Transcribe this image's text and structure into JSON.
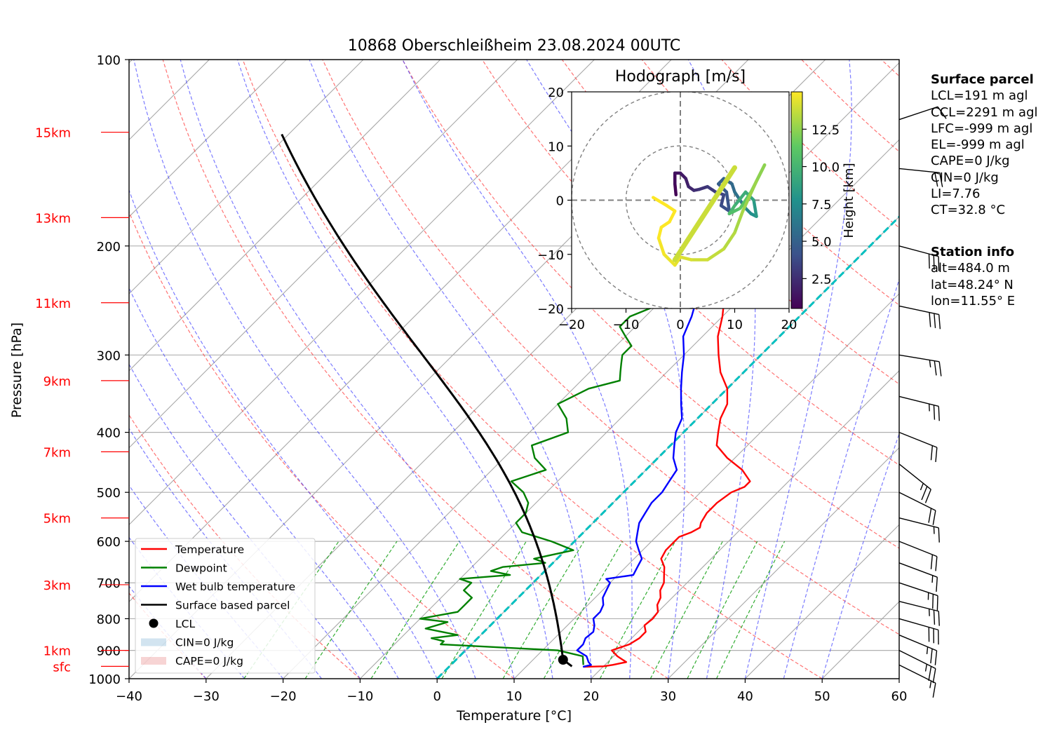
{
  "chart_data": {
    "type": "skew-t",
    "title": "10868 Oberschleißheim 23.08.2024 00UTC",
    "xlabel": "Temperature [°C]",
    "ylabel": "Pressure [hPa]",
    "xlim": [
      -40,
      60
    ],
    "ylim": [
      1000,
      100
    ],
    "y_scale": "log",
    "skew_deg": 45,
    "grid": true,
    "x_ticks": [
      -40,
      -30,
      -20,
      -10,
      0,
      10,
      20,
      30,
      40,
      50,
      60
    ],
    "x_tick_labels": [
      "−40",
      "−30",
      "−20",
      "−10",
      "0",
      "10",
      "20",
      "30",
      "40",
      "50",
      "60"
    ],
    "y_ticks": [
      1000,
      900,
      800,
      700,
      600,
      500,
      400,
      300,
      200,
      100
    ],
    "y_tick_labels": [
      "1000",
      "900",
      "800",
      "700",
      "600",
      "500",
      "400",
      "300",
      "200",
      "100"
    ],
    "height_labels": [
      {
        "label": "sfc",
        "p": 955
      },
      {
        "label": "1km",
        "p": 900
      },
      {
        "label": "3km",
        "p": 705
      },
      {
        "label": "5km",
        "p": 550
      },
      {
        "label": "7km",
        "p": 430
      },
      {
        "label": "9km",
        "p": 330
      },
      {
        "label": "11km",
        "p": 247
      },
      {
        "label": "13km",
        "p": 180
      },
      {
        "label": "15km",
        "p": 131
      }
    ],
    "series": [
      {
        "name": "Temperature",
        "color": "#ff0000",
        "points": [
          [
            957,
            17.5
          ],
          [
            955,
            20
          ],
          [
            950,
            21
          ],
          [
            940,
            22.4
          ],
          [
            920,
            20.5
          ],
          [
            900,
            19
          ],
          [
            880,
            20.5
          ],
          [
            860,
            21
          ],
          [
            840,
            21
          ],
          [
            820,
            20
          ],
          [
            800,
            20.2
          ],
          [
            780,
            20
          ],
          [
            760,
            19
          ],
          [
            740,
            18.5
          ],
          [
            720,
            17.5
          ],
          [
            700,
            17
          ],
          [
            680,
            16
          ],
          [
            660,
            15
          ],
          [
            640,
            13.5
          ],
          [
            620,
            13
          ],
          [
            600,
            13
          ],
          [
            590,
            13
          ],
          [
            580,
            14
          ],
          [
            570,
            14.5
          ],
          [
            560,
            14
          ],
          [
            540,
            13.5
          ],
          [
            520,
            13.5
          ],
          [
            500,
            14
          ],
          [
            490,
            15
          ],
          [
            480,
            15
          ],
          [
            460,
            12.5
          ],
          [
            440,
            9
          ],
          [
            420,
            6
          ],
          [
            400,
            4.5
          ],
          [
            380,
            3
          ],
          [
            360,
            2
          ],
          [
            340,
            0
          ],
          [
            320,
            -3
          ],
          [
            300,
            -5.5
          ],
          [
            280,
            -8
          ],
          [
            260,
            -10
          ],
          [
            240,
            -12.5
          ],
          [
            230,
            -14
          ],
          [
            220,
            -16
          ],
          [
            210,
            -16.5
          ],
          [
            200,
            -16.5
          ],
          [
            190,
            -18
          ],
          [
            180,
            -20
          ],
          [
            170,
            -21
          ],
          [
            160,
            -22.5
          ],
          [
            150,
            -25
          ],
          [
            140,
            -27
          ],
          [
            135,
            -28
          ]
        ]
      },
      {
        "name": "Dewpoint",
        "color": "#008000",
        "points": [
          [
            950,
            17.2
          ],
          [
            920,
            16
          ],
          [
            900,
            12
          ],
          [
            880,
            -4
          ],
          [
            870,
            -4
          ],
          [
            860,
            -6
          ],
          [
            850,
            -3
          ],
          [
            830,
            -8
          ],
          [
            810,
            -6
          ],
          [
            800,
            -10
          ],
          [
            780,
            -6
          ],
          [
            760,
            -6
          ],
          [
            740,
            -6
          ],
          [
            720,
            -8
          ],
          [
            700,
            -8
          ],
          [
            690,
            -10
          ],
          [
            680,
            -4
          ],
          [
            670,
            -7
          ],
          [
            660,
            -6
          ],
          [
            650,
            -1
          ],
          [
            640,
            -3
          ],
          [
            620,
            1
          ],
          [
            600,
            -3
          ],
          [
            580,
            -8
          ],
          [
            560,
            -10
          ],
          [
            540,
            -10
          ],
          [
            520,
            -11
          ],
          [
            500,
            -13
          ],
          [
            480,
            -16
          ],
          [
            460,
            -13
          ],
          [
            440,
            -16
          ],
          [
            420,
            -18
          ],
          [
            400,
            -15
          ],
          [
            380,
            -17
          ],
          [
            360,
            -20
          ],
          [
            340,
            -18
          ],
          [
            330,
            -15
          ],
          [
            320,
            -16
          ],
          [
            310,
            -17
          ],
          [
            300,
            -18
          ],
          [
            290,
            -18
          ],
          [
            280,
            -20
          ],
          [
            270,
            -22
          ],
          [
            260,
            -22
          ],
          [
            250,
            -20
          ],
          [
            240,
            -22
          ],
          [
            230,
            -23
          ],
          [
            220,
            -25
          ],
          [
            210,
            -28
          ],
          [
            200,
            -30
          ],
          [
            190,
            -30
          ],
          [
            180,
            -30
          ],
          [
            175,
            -28
          ],
          [
            172,
            -38
          ],
          [
            170,
            -42
          ],
          [
            168,
            -35
          ],
          [
            165,
            -33
          ],
          [
            160,
            -33
          ],
          [
            155,
            -34
          ],
          [
            150,
            -35
          ],
          [
            145,
            -34
          ],
          [
            140,
            -34
          ],
          [
            135,
            -36
          ],
          [
            132,
            -37
          ],
          [
            130,
            -37
          ]
        ]
      },
      {
        "name": "Wet bulb temperature",
        "color": "#0000ff",
        "points": [
          [
            957,
            17.4
          ],
          [
            950,
            18.2
          ],
          [
            940,
            17.5
          ],
          [
            920,
            16.5
          ],
          [
            900,
            14.5
          ],
          [
            880,
            14.5
          ],
          [
            860,
            14
          ],
          [
            840,
            14.2
          ],
          [
            820,
            13.5
          ],
          [
            800,
            12.5
          ],
          [
            780,
            12.5
          ],
          [
            760,
            12
          ],
          [
            740,
            11
          ],
          [
            720,
            10.5
          ],
          [
            700,
            10
          ],
          [
            690,
            9
          ],
          [
            680,
            12
          ],
          [
            660,
            11.5
          ],
          [
            640,
            11
          ],
          [
            620,
            9.5
          ],
          [
            600,
            8
          ],
          [
            580,
            7
          ],
          [
            560,
            6
          ],
          [
            540,
            5.5
          ],
          [
            520,
            5
          ],
          [
            500,
            5
          ],
          [
            480,
            4.5
          ],
          [
            460,
            4
          ],
          [
            440,
            2
          ],
          [
            420,
            0.5
          ],
          [
            400,
            -1
          ],
          [
            380,
            -2
          ],
          [
            360,
            -4
          ],
          [
            340,
            -6
          ],
          [
            320,
            -8
          ],
          [
            300,
            -10
          ],
          [
            280,
            -12.5
          ],
          [
            260,
            -14
          ],
          [
            240,
            -16
          ],
          [
            230,
            -17
          ],
          [
            220,
            -19
          ],
          [
            210,
            -20
          ],
          [
            200,
            -21
          ],
          [
            190,
            -22
          ],
          [
            180,
            -24
          ],
          [
            170,
            -26
          ],
          [
            160,
            -28
          ],
          [
            150,
            -30
          ],
          [
            145,
            -31
          ],
          [
            140,
            -33
          ],
          [
            135,
            -34
          ]
        ]
      },
      {
        "name": "Surface based parcel",
        "color": "#000000",
        "type": "parcel",
        "t_surface": 15.9,
        "p_surface": 955,
        "p_top": 130
      }
    ],
    "lcl": {
      "name": "LCL",
      "p": 932,
      "t": 15.9
    },
    "cin_label": "CIN=0 J/kg",
    "cape_label": "CAPE=0 J/kg",
    "zero_isotherm": {
      "t": 0,
      "color": "#00bfbf"
    },
    "legend_placement": "lower-left",
    "wind_barbs": [
      {
        "p": 950,
        "u": -8,
        "v": 4
      },
      {
        "p": 900,
        "u": -12,
        "v": 6
      },
      {
        "p": 850,
        "u": -12,
        "v": 5
      },
      {
        "p": 800,
        "u": -14,
        "v": 4
      },
      {
        "p": 750,
        "u": -12,
        "v": 3
      },
      {
        "p": 700,
        "u": -12,
        "v": 4
      },
      {
        "p": 650,
        "u": -8,
        "v": 3
      },
      {
        "p": 600,
        "u": -10,
        "v": 4
      },
      {
        "p": 550,
        "u": -8,
        "v": 2
      },
      {
        "p": 500,
        "u": -10,
        "v": 5
      },
      {
        "p": 450,
        "u": -10,
        "v": 8
      },
      {
        "p": 400,
        "u": -10,
        "v": 4
      },
      {
        "p": 350,
        "u": -12,
        "v": 3
      },
      {
        "p": 300,
        "u": -12,
        "v": 2
      },
      {
        "p": 250,
        "u": -14,
        "v": 3
      },
      {
        "p": 200,
        "u": -15,
        "v": 4
      },
      {
        "p": 150,
        "u": -10,
        "v": 1
      },
      {
        "p": 125,
        "u": -6,
        "v": -2
      }
    ],
    "hodograph": {
      "title": "Hodograph [m/s]",
      "xlim": [
        -20,
        20
      ],
      "ylim": [
        -20,
        20
      ],
      "ticks": [
        -20,
        -10,
        0,
        10,
        20
      ],
      "tick_labels": [
        "−20",
        "−10",
        "0",
        "10",
        "20"
      ],
      "rings": [
        10,
        20
      ],
      "colorbar_label": "Height [km]",
      "colorbar_ticks": [
        2.5,
        5.0,
        7.5,
        10.0,
        12.5
      ],
      "colorbar_tick_labels": [
        "2.5",
        "5.0",
        "7.5",
        "10.0",
        "12.5"
      ],
      "height_range": [
        0.5,
        15
      ],
      "points": [
        [
          -0.8,
          1,
          0.5
        ],
        [
          -1,
          3,
          0.8
        ],
        [
          -1,
          5,
          1.1
        ],
        [
          0,
          5,
          1.4
        ],
        [
          1,
          4,
          1.7
        ],
        [
          1.5,
          2.5,
          2
        ],
        [
          2.5,
          1.8,
          2.3
        ],
        [
          3.5,
          2,
          2.6
        ],
        [
          5,
          2.5,
          2.9
        ],
        [
          6.5,
          1.5,
          3.2
        ],
        [
          8,
          1,
          3.5
        ],
        [
          7.5,
          -1,
          3.8
        ],
        [
          9,
          -2,
          4.1
        ],
        [
          8.5,
          1.5,
          4.4
        ],
        [
          7,
          3,
          4.7
        ],
        [
          8,
          4,
          5
        ],
        [
          9.5,
          3,
          5.3
        ],
        [
          10,
          1.5,
          5.6
        ],
        [
          11,
          0,
          6.2
        ],
        [
          12,
          -1.5,
          6.8
        ],
        [
          13,
          -2.5,
          7.4
        ],
        [
          14,
          -3,
          8
        ],
        [
          13.5,
          0,
          8.6
        ],
        [
          12,
          1.5,
          9.2
        ],
        [
          10,
          -1,
          9.8
        ],
        [
          9,
          -2.5,
          10.4
        ],
        [
          11,
          -1.5,
          11
        ],
        [
          13,
          1.5,
          11.5
        ],
        [
          14.5,
          4.5,
          12
        ],
        [
          15.5,
          6.5,
          12.3
        ],
        [
          14,
          3.5,
          12.6
        ],
        [
          11.5,
          -2,
          12.9
        ],
        [
          10,
          -6,
          13.2
        ],
        [
          8,
          -9,
          13.5
        ],
        [
          5,
          -11,
          13.8
        ],
        [
          2,
          -11,
          14.1
        ],
        [
          0,
          -10.5,
          14.3
        ],
        [
          -1,
          -12,
          14.5
        ],
        [
          -3,
          -10,
          14.7
        ],
        [
          -4,
          -7,
          14.9
        ],
        [
          -3.5,
          -5,
          15
        ],
        [
          -2,
          -4,
          15
        ],
        [
          -1,
          -2,
          15
        ],
        [
          -2.5,
          -1,
          15
        ],
        [
          -5,
          0.5,
          15
        ]
      ],
      "mean_wind_line": [
        [
          -1,
          -11
        ],
        [
          10,
          6
        ]
      ]
    },
    "info": {
      "surface_parcel_title": "Surface parcel",
      "surface_parcel": [
        "LCL=191 m agl",
        "CCL=2291 m agl",
        "LFC=-999 m agl",
        "EL=-999 m agl",
        "CAPE=0 J/kg",
        "CIN=0 J/kg",
        "LI=7.76",
        "CT=32.8 °C"
      ],
      "station_title": "Station info",
      "station": [
        "alt=484.0 m",
        "lat=48.24° N",
        "lon=11.55° E"
      ]
    }
  }
}
